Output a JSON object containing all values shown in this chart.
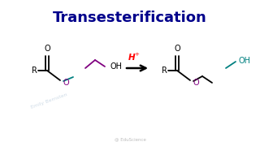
{
  "title": "Transesterification",
  "title_color": "#00008B",
  "title_fontsize": 13,
  "title_fontweight": "bold",
  "bg_color": "#FFFFFF",
  "black": "#000000",
  "purple": "#800080",
  "teal": "#008080",
  "red": "#FF0000",
  "gray": "#AABBCC",
  "watermark1": "Emily Bernsten",
  "watermark2": "@ EduScience",
  "figw": 3.2,
  "figh": 1.8,
  "dpi": 100
}
